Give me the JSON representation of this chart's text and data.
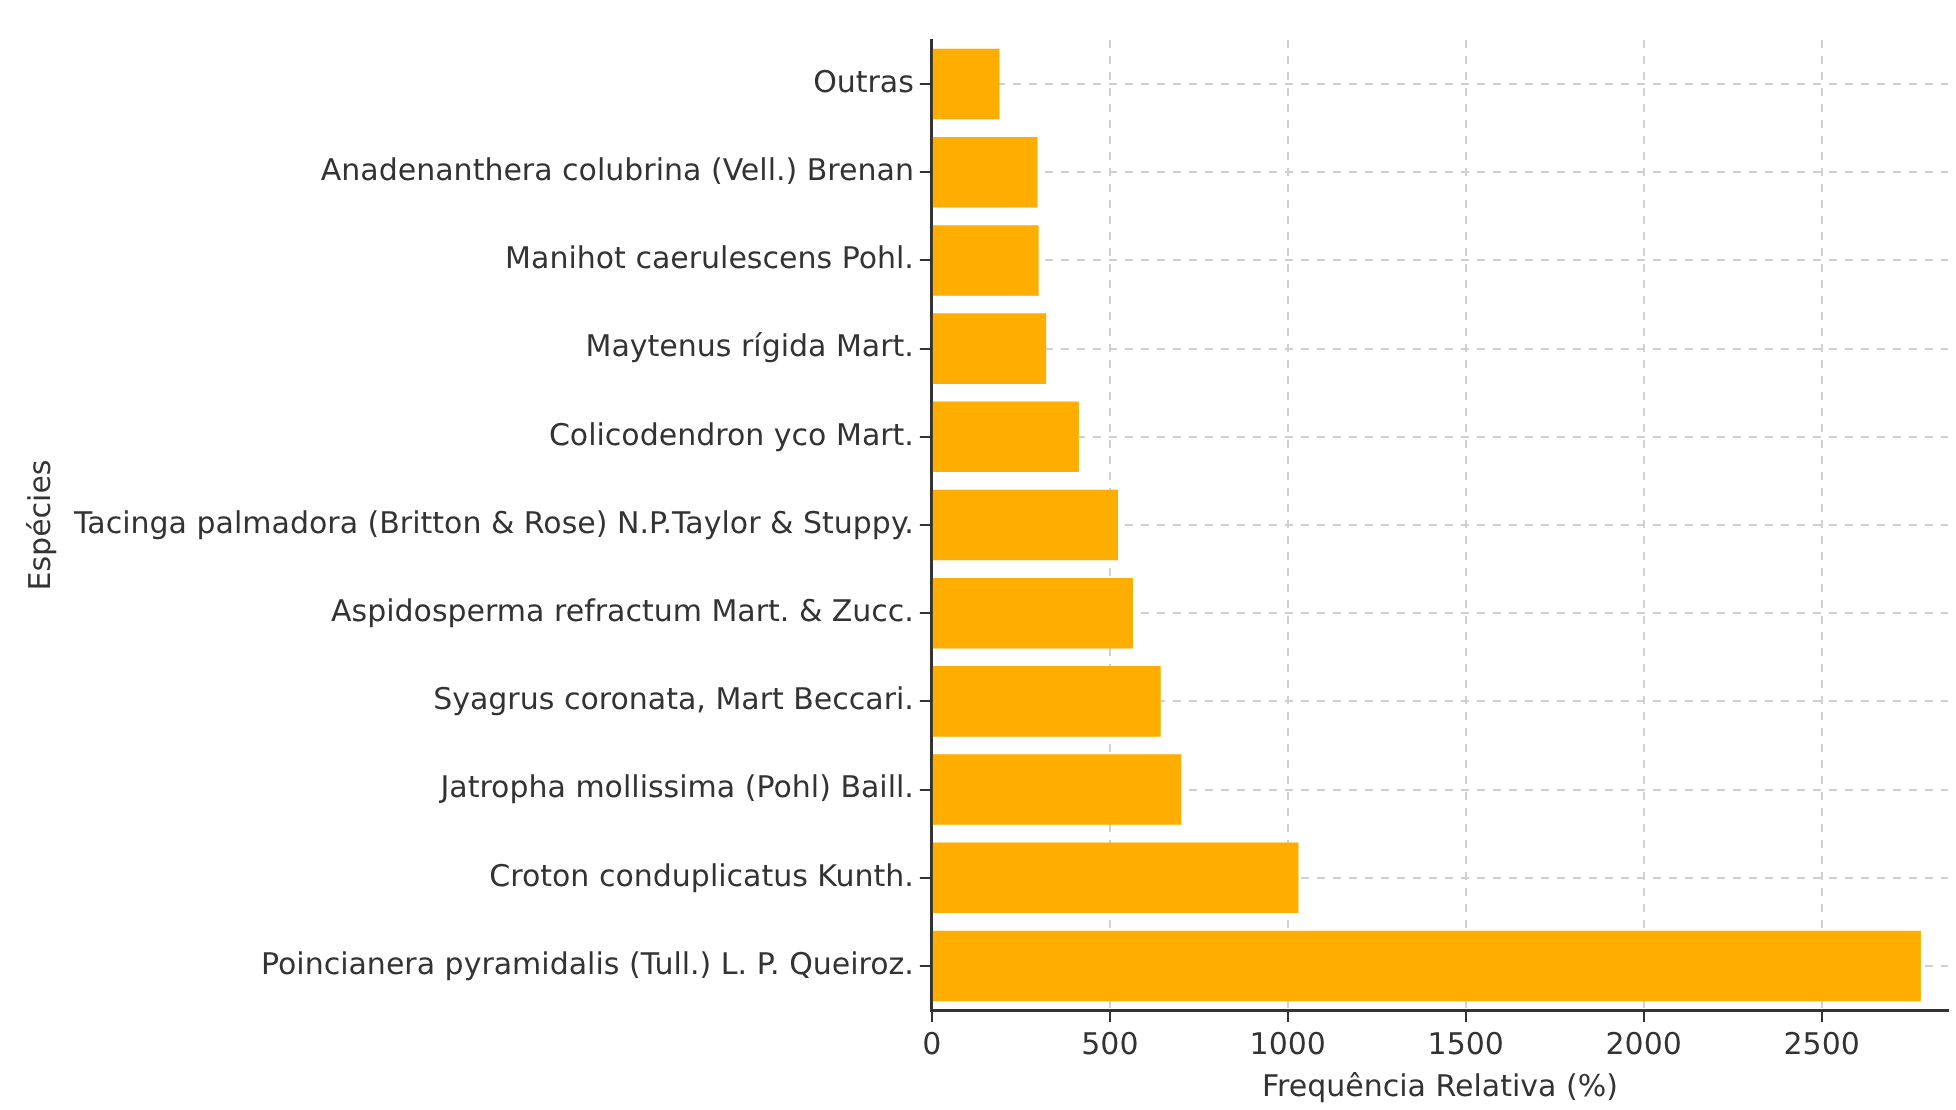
{
  "chart_data": {
    "type": "bar",
    "orientation": "horizontal",
    "xlabel": "Frequência Relativa (%)",
    "ylabel": "Espécies",
    "categories": [
      "Outras",
      "Anadenanthera colubrina (Vell.) Brenan",
      "Manihot caerulescens Pohl.",
      "Maytenus rígida Mart.",
      "Colicodendron yco Mart.",
      "Tacinga palmadora (Britton & Rose) N.P.Taylor & Stuppy.",
      "Aspidosperma refractum Mart. & Zucc.",
      "Syagrus coronata, Mart Beccari.",
      "Jatropha mollissima (Pohl) Baill.",
      "Croton conduplicatus Kunth.",
      "Poincianera pyramidalis (Tull.) L. P. Queiroz."
    ],
    "values": [
      190,
      297,
      300,
      321,
      413,
      523,
      565,
      643,
      701,
      1030,
      2779
    ],
    "color": "#ffae00",
    "xlim": [
      0,
      2855
    ],
    "xticks": [
      0,
      500,
      1000,
      1500,
      2000,
      2500
    ],
    "grid": true
  }
}
